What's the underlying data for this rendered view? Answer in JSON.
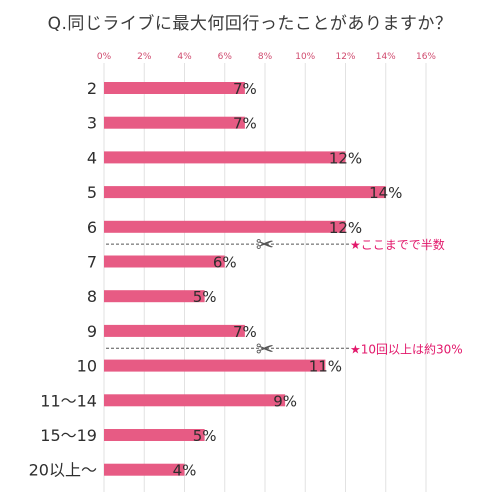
{
  "chart_data": {
    "type": "bar",
    "orientation": "horizontal",
    "title": "Q.同じライブに最大何回行ったことがありますか？",
    "categories": [
      "2",
      "3",
      "4",
      "5",
      "6",
      "7",
      "8",
      "9",
      "10",
      "11〜14",
      "15〜19",
      "20以上〜"
    ],
    "values": [
      7,
      7,
      12,
      14,
      12,
      6,
      5,
      7,
      11,
      9,
      5,
      4
    ],
    "value_labels": [
      "7%",
      "7%",
      "12%",
      "14%",
      "12%",
      "6%",
      "5%",
      "7%",
      "11%",
      "9%",
      "5%",
      "4%"
    ],
    "xlim": [
      0,
      16
    ],
    "ticks": [
      0,
      2,
      4,
      6,
      8,
      10,
      12,
      14,
      16
    ],
    "tick_labels": [
      "0%",
      "2%",
      "4%",
      "6%",
      "8%",
      "10%",
      "12%",
      "14%",
      "16%"
    ],
    "grid": true,
    "bar_color": "#e75b84",
    "grid_color": "#e2e2e2",
    "annotations": [
      {
        "after_category": "6",
        "text": "★ここまでで半数",
        "icon": "scissors-icon"
      },
      {
        "after_category": "9",
        "text": "★10回以上は約30%",
        "icon": "scissors-icon"
      }
    ]
  }
}
